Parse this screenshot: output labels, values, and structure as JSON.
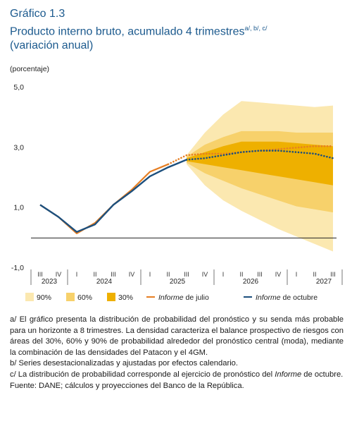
{
  "figure": {
    "number": "Gráfico 1.3",
    "title": "Producto interno bruto, acumulado 4 trimestres",
    "title_sup": "a/, b/, c/",
    "title_line2": "(variación anual)",
    "unit": "(porcentaje)"
  },
  "chart_data": {
    "type": "line",
    "title": "Producto interno bruto, acumulado 4 trimestres",
    "ylabel": "(porcentaje)",
    "ylim": [
      -1.0,
      5.0
    ],
    "yticks": [
      "5,0",
      "3,0",
      "1,0",
      "-1,0"
    ],
    "quarter_labels": [
      "III",
      "IV",
      "I",
      "II",
      "III",
      "IV",
      "I",
      "II",
      "III",
      "IV",
      "I",
      "II",
      "III",
      "IV",
      "I",
      "II",
      "III"
    ],
    "year_labels": [
      "2023",
      "2024",
      "2025",
      "2026",
      "2027"
    ],
    "x": [
      "2023-III",
      "2023-IV",
      "2024-I",
      "2024-II",
      "2024-III",
      "2024-IV",
      "2025-I",
      "2025-II",
      "2025-III",
      "2025-IV",
      "2026-I",
      "2026-II",
      "2026-III",
      "2026-IV",
      "2027-I",
      "2027-II",
      "2027-III"
    ],
    "series": [
      {
        "name": "Informe de julio",
        "color": "#e67e22",
        "observed": [
          1.1,
          0.7,
          0.15,
          0.5,
          1.1,
          1.6,
          2.2,
          2.45
        ],
        "forecast": [
          null,
          null,
          null,
          null,
          null,
          null,
          null,
          2.45,
          2.75,
          2.8,
          2.8,
          2.85,
          2.9,
          2.95,
          3.0,
          3.05,
          3.05
        ]
      },
      {
        "name": "Informe de octubre",
        "color": "#1c4f7d",
        "observed": [
          1.1,
          0.7,
          0.2,
          0.45,
          1.1,
          1.55,
          2.05,
          2.35,
          2.6
        ],
        "forecast": [
          null,
          null,
          null,
          null,
          null,
          null,
          null,
          null,
          2.6,
          2.65,
          2.75,
          2.85,
          2.9,
          2.9,
          2.85,
          2.8,
          2.65
        ]
      }
    ],
    "fan": {
      "start": "2025-III",
      "center": [
        2.6,
        2.65,
        2.75,
        2.85,
        2.9,
        2.9,
        2.85,
        2.8,
        2.65
      ],
      "band_90": {
        "upper": [
          2.75,
          3.5,
          4.1,
          4.55,
          4.5,
          4.45,
          4.4,
          4.35,
          4.4
        ],
        "lower": [
          2.45,
          1.75,
          1.25,
          0.9,
          0.6,
          0.3,
          0.05,
          -0.2,
          -0.45
        ]
      },
      "band_60": {
        "upper": [
          2.7,
          3.1,
          3.35,
          3.55,
          3.55,
          3.55,
          3.5,
          3.5,
          3.5
        ],
        "lower": [
          2.5,
          2.15,
          1.9,
          1.65,
          1.45,
          1.25,
          1.05,
          0.95,
          0.85
        ]
      },
      "band_30": {
        "upper": [
          2.65,
          2.85,
          3.05,
          3.2,
          3.2,
          3.2,
          3.15,
          3.1,
          3.05
        ],
        "lower": [
          2.55,
          2.45,
          2.35,
          2.25,
          2.15,
          2.05,
          1.95,
          1.85,
          1.75
        ]
      }
    },
    "legend": [
      {
        "label": "90%",
        "kind": "swatch",
        "color": "#fbe8b0"
      },
      {
        "label": "60%",
        "kind": "swatch",
        "color": "#f7d16b"
      },
      {
        "label": "30%",
        "kind": "swatch",
        "color": "#eeb000"
      },
      {
        "label": "Informe de julio",
        "kind": "line",
        "color": "#e67e22"
      },
      {
        "label": "Informe de octubre",
        "kind": "line",
        "color": "#1c4f7d"
      }
    ],
    "legend_placement": "bottom",
    "grid": false
  },
  "notes": {
    "a_1": "a/ El gráfico presenta la distribución de probabilidad del pronóstico y su senda más probable para un horizonte a 8 trimestres. La densidad caracteriza el balance prospectivo de riesgos con áreas del 30%, 60% y 90% de probabilidad alrededor del pronóstico central (moda), mediante la combinación de las densidades del Patacon y el 4GM.",
    "b": "b/ Series desestacionalizadas y ajustadas por efectos calendario.",
    "c_1": "c/ La distribución de probabilidad corresponde al ejercicio de pronóstico del",
    "c_em": "Informe",
    "c_2": " de octubre.",
    "fuente": "Fuente: DANE; cálculos y proyecciones del Banco de la República."
  }
}
